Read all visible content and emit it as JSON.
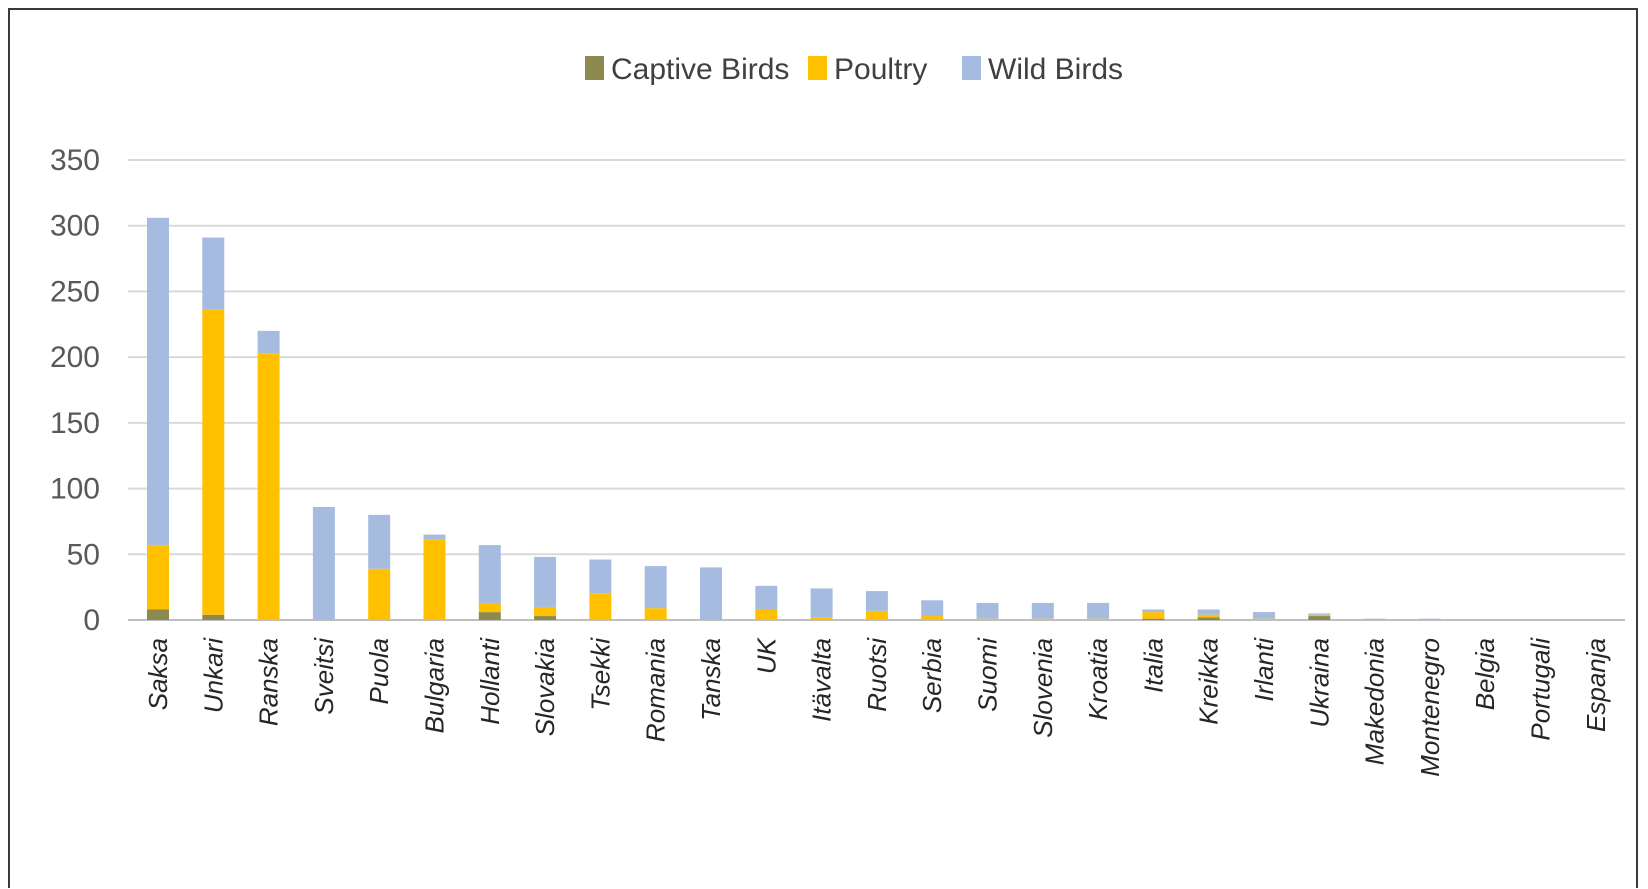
{
  "chart_data": {
    "type": "bar",
    "stacked": true,
    "title": "",
    "xlabel": "",
    "ylabel": "",
    "ylim": [
      0,
      350
    ],
    "yticks": [
      "0",
      "50",
      "100",
      "150",
      "200",
      "250",
      "300",
      "350"
    ],
    "grid": true,
    "legend_position": "top-center",
    "categories": [
      "Saksa",
      "Unkari",
      "Ranska",
      "Sveitsi",
      "Puola",
      "Bulgaria",
      "Hollanti",
      "Slovakia",
      "Tsekki",
      "Romania",
      "Tanska",
      "UK",
      "Itävalta",
      "Ruotsi",
      "Serbia",
      "Suomi",
      "Slovenia",
      "Kroatia",
      "Italia",
      "Kreikka",
      "Irlanti",
      "Ukraina",
      "Makedonia",
      "Montenegro",
      "Belgia",
      "Portugali",
      "Espanja"
    ],
    "series": [
      {
        "name": "Captive Birds",
        "color": "#8c8a4f",
        "values": [
          8,
          4,
          0,
          0,
          0,
          0,
          6,
          3,
          0,
          0,
          0,
          0,
          0,
          0,
          0,
          0,
          0,
          0,
          1,
          2,
          0,
          3,
          0,
          0,
          0,
          0,
          0
        ]
      },
      {
        "name": "Poultry",
        "color": "#ffc000",
        "values": [
          49,
          232,
          203,
          0,
          39,
          61,
          7,
          7,
          20,
          9,
          0,
          8,
          2,
          7,
          3,
          1,
          1,
          1,
          5,
          2,
          1,
          1,
          0,
          0,
          0,
          0,
          0
        ]
      },
      {
        "name": "Wild Birds",
        "color": "#a6bbe0",
        "values": [
          249,
          55,
          17,
          86,
          41,
          4,
          44,
          38,
          26,
          32,
          40,
          18,
          22,
          15,
          12,
          12,
          12,
          12,
          2,
          4,
          5,
          1,
          1,
          1,
          0,
          0,
          0
        ]
      }
    ]
  }
}
